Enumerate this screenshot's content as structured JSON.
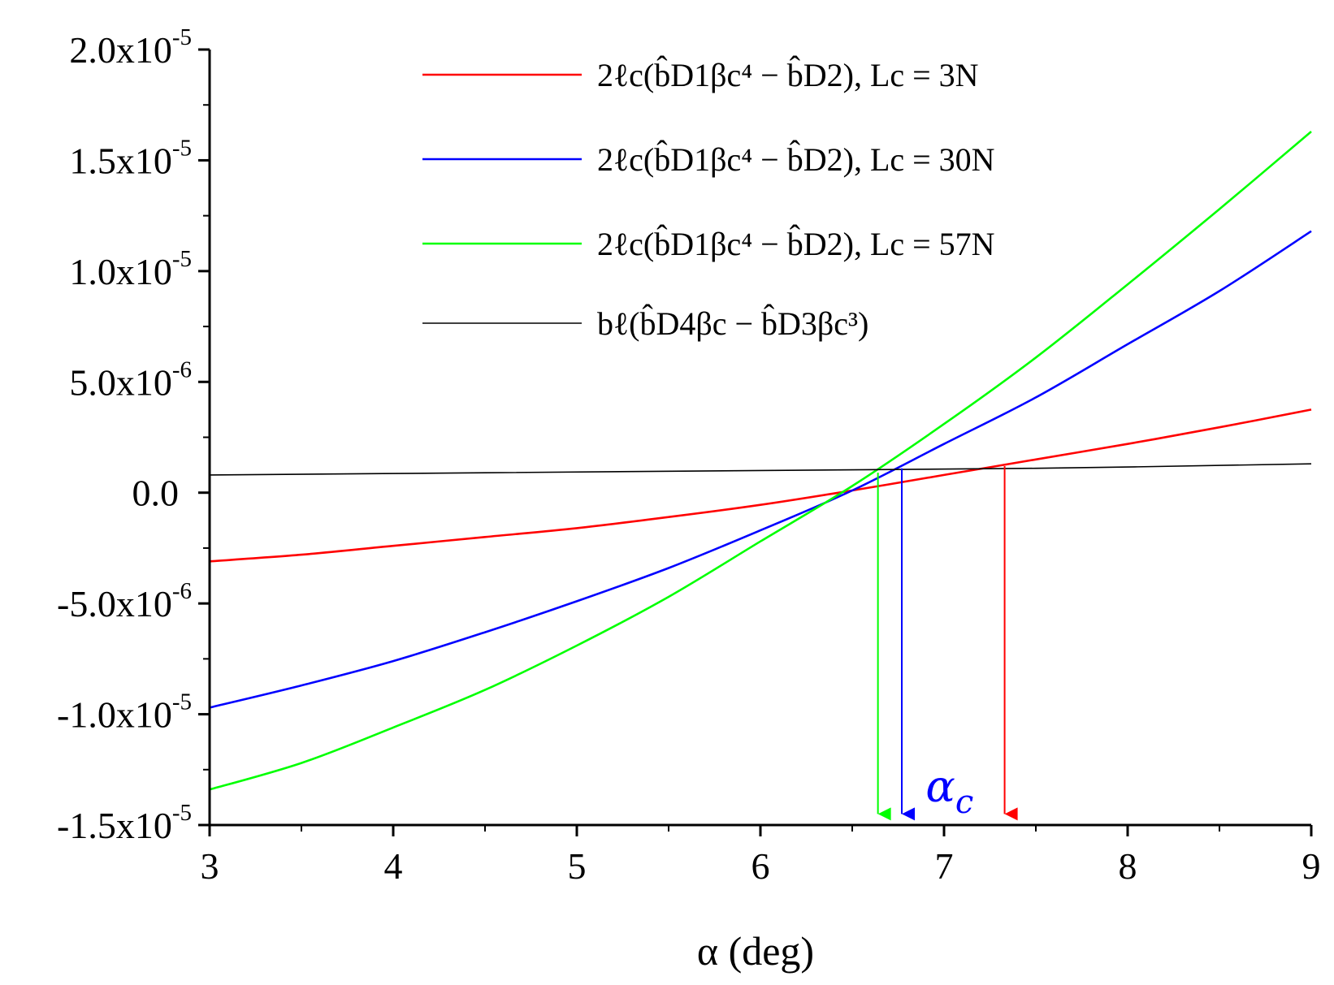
{
  "chart_data": {
    "type": "line",
    "title": "",
    "xlabel": "α (deg)",
    "ylabel": "",
    "xlim": [
      3,
      9
    ],
    "ylim": [
      -1.5e-05,
      2e-05
    ],
    "x_ticks": [
      3,
      4,
      5,
      6,
      7,
      8,
      9
    ],
    "x_tick_labels": [
      "3",
      "4",
      "5",
      "6",
      "7",
      "8",
      "9"
    ],
    "y_ticks": [
      {
        "value": 2e-05,
        "mantissa": "2.0x10",
        "exponent": "-5"
      },
      {
        "value": 1.5e-05,
        "mantissa": "1.5x10",
        "exponent": "-5"
      },
      {
        "value": 1e-05,
        "mantissa": "1.0x10",
        "exponent": "-5"
      },
      {
        "value": 5e-06,
        "mantissa": "5.0x10",
        "exponent": "-6"
      },
      {
        "value": 0.0,
        "mantissa": "0.0",
        "exponent": ""
      },
      {
        "value": -5e-06,
        "mantissa": "-5.0x10",
        "exponent": "-6"
      },
      {
        "value": -1e-05,
        "mantissa": "-1.0x10",
        "exponent": "-5"
      },
      {
        "value": -1.5e-05,
        "mantissa": "-1.5x10",
        "exponent": "-5"
      }
    ],
    "grid": false,
    "legend_position": "top-right",
    "series": [
      {
        "name": "2ℓc(b̂D1βc⁴ − b̂D2), Lc = 3N",
        "color": "#ff0000",
        "x": [
          3.0,
          3.5,
          4.0,
          4.5,
          5.0,
          5.5,
          6.0,
          6.5,
          7.0,
          7.5,
          8.0,
          8.5,
          9.0
        ],
        "y": [
          -3.1e-06,
          -2.8e-06,
          -2.4e-06,
          -2e-06,
          -1.6e-06,
          -1.1e-06,
          -5.5e-07,
          1e-07,
          8e-07,
          1.5e-06,
          2.2e-06,
          2.95e-06,
          3.75e-06
        ]
      },
      {
        "name": "2ℓc(b̂D1βc⁴ − b̂D2), Lc = 30N",
        "color": "#0000ff",
        "x": [
          3.0,
          3.5,
          4.0,
          4.5,
          5.0,
          5.5,
          6.0,
          6.5,
          7.0,
          7.5,
          8.0,
          8.5,
          9.0
        ],
        "y": [
          -9.7e-06,
          -8.7e-06,
          -7.6e-06,
          -6.3e-06,
          -4.9e-06,
          -3.4e-06,
          -1.7e-06,
          1e-07,
          2.2e-06,
          4.3e-06,
          6.7e-06,
          9.1e-06,
          1.18e-05
        ]
      },
      {
        "name": "2ℓc(b̂D1βc⁴ − b̂D2), Lc = 57N",
        "color": "#00ff00",
        "x": [
          3.0,
          3.5,
          4.0,
          4.5,
          5.0,
          5.5,
          6.0,
          6.5,
          7.0,
          7.5,
          8.0,
          8.5,
          9.0
        ],
        "y": [
          -1.34e-05,
          -1.22e-05,
          -1.06e-05,
          -8.9e-06,
          -6.9e-06,
          -4.7e-06,
          -2.2e-06,
          3e-07,
          3.1e-06,
          6.1e-06,
          9.4e-06,
          1.28e-05,
          1.63e-05
        ]
      },
      {
        "name": "bℓ(b̂D4βc − b̂D3βc³)",
        "color": "#000000",
        "x": [
          3.0,
          4.5,
          6.0,
          7.5,
          9.0
        ],
        "y": [
          8e-07,
          9e-07,
          1e-06,
          1.1e-06,
          1.3e-06
        ]
      }
    ],
    "annotations": [
      {
        "text": "α",
        "subscript": "c",
        "x": 6.9,
        "y": -1.35e-05,
        "color": "#0000ff"
      }
    ],
    "markers": [
      {
        "x": 6.64,
        "y_from": 9e-07,
        "y_to": -1.45e-05,
        "color": "#00ff00"
      },
      {
        "x": 6.77,
        "y_from": 1.1e-06,
        "y_to": -1.45e-05,
        "color": "#0000ff"
      },
      {
        "x": 7.33,
        "y_from": 1.2e-06,
        "y_to": -1.45e-05,
        "color": "#ff0000"
      }
    ]
  }
}
